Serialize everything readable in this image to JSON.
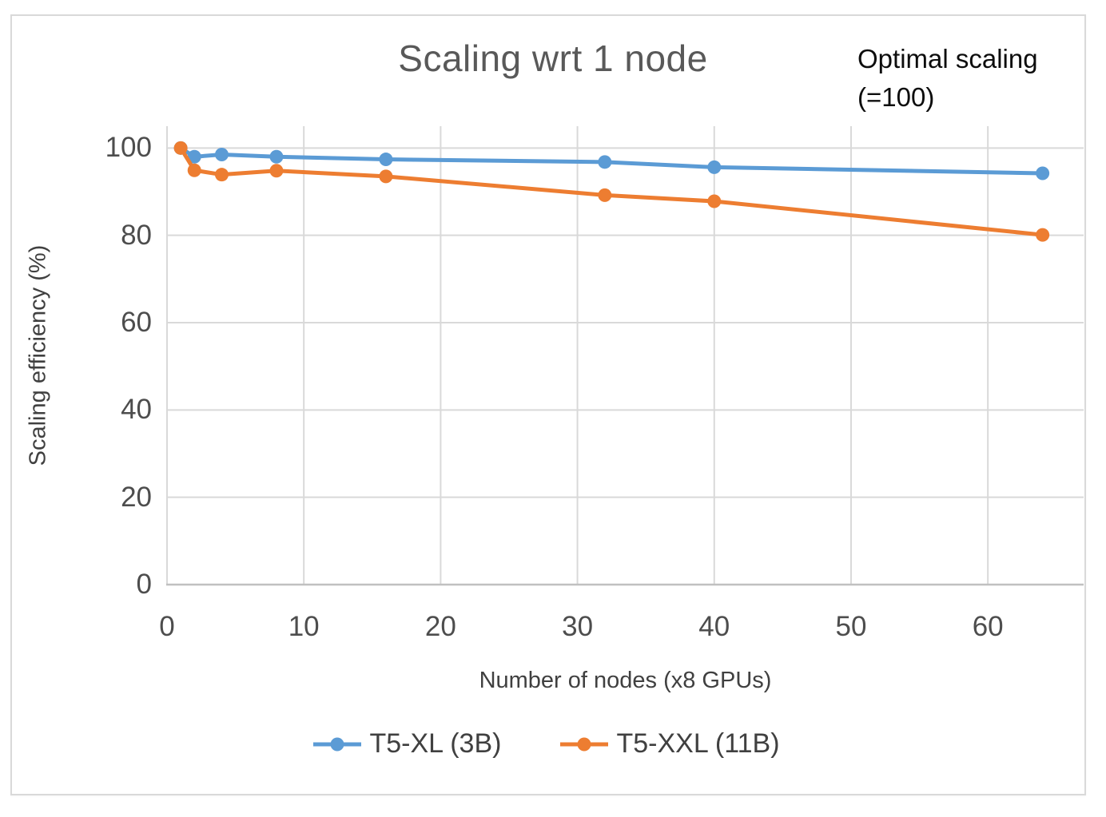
{
  "window": {
    "background": "#ffffff",
    "frame_border_color": "#d9d9d9"
  },
  "chart_data": {
    "type": "line",
    "title": "Scaling wrt 1 node",
    "annotation": {
      "line1": "Optimal scaling",
      "line2": "(=100)"
    },
    "xlabel": "Number of nodes (x8 GPUs)",
    "ylabel": "Scaling efficiency (%)",
    "x_ticks": [
      0,
      10,
      20,
      30,
      40,
      50,
      60
    ],
    "y_ticks": [
      0,
      20,
      40,
      60,
      80,
      100
    ],
    "xlim": [
      0,
      67
    ],
    "ylim": [
      0,
      105
    ],
    "grid": true,
    "legend_position": "bottom-center",
    "x": [
      1,
      2,
      4,
      8,
      16,
      32,
      40,
      64
    ],
    "series": [
      {
        "name": "T5-XL (3B)",
        "color": "#5B9BD5",
        "values": [
          100,
          98,
          98.5,
          98,
          97.4,
          96.8,
          95.6,
          94.2
        ]
      },
      {
        "name": "T5-XXL (11B)",
        "color": "#ED7D31",
        "values": [
          100,
          94.9,
          93.9,
          94.8,
          93.5,
          89.2,
          87.8,
          80.1
        ]
      }
    ],
    "colors": {
      "gridline": "#d9d9d9",
      "axis_line": "#c0c0c0",
      "title": "#595959",
      "tick": "#4d4d4d",
      "axis_title": "#404040",
      "legend_text": "#404040",
      "annotation": "#0d0d0d"
    }
  }
}
